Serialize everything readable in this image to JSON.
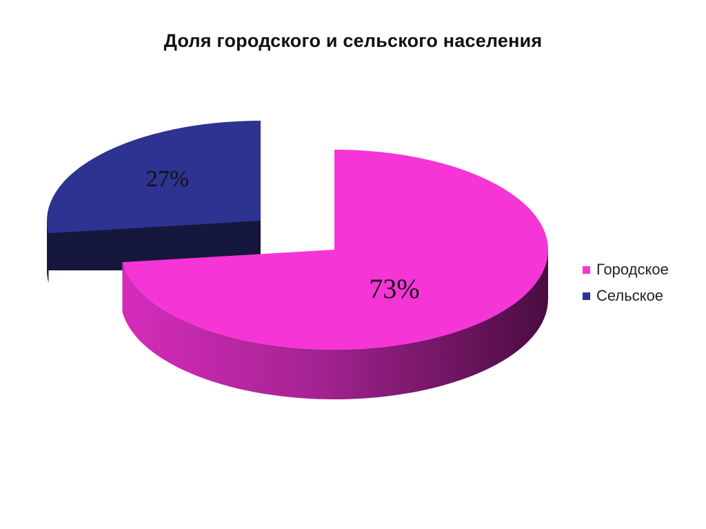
{
  "chart_data": {
    "type": "pie",
    "title": "Доля городского и сельского населения",
    "slices": [
      {
        "name": "Городское",
        "value": 73,
        "label": "73%",
        "color": "#f535d6"
      },
      {
        "name": "Сельское",
        "value": 27,
        "label": "27%",
        "color": "#2e3290"
      }
    ],
    "legend_position": "right",
    "style": "3d-exploded"
  }
}
